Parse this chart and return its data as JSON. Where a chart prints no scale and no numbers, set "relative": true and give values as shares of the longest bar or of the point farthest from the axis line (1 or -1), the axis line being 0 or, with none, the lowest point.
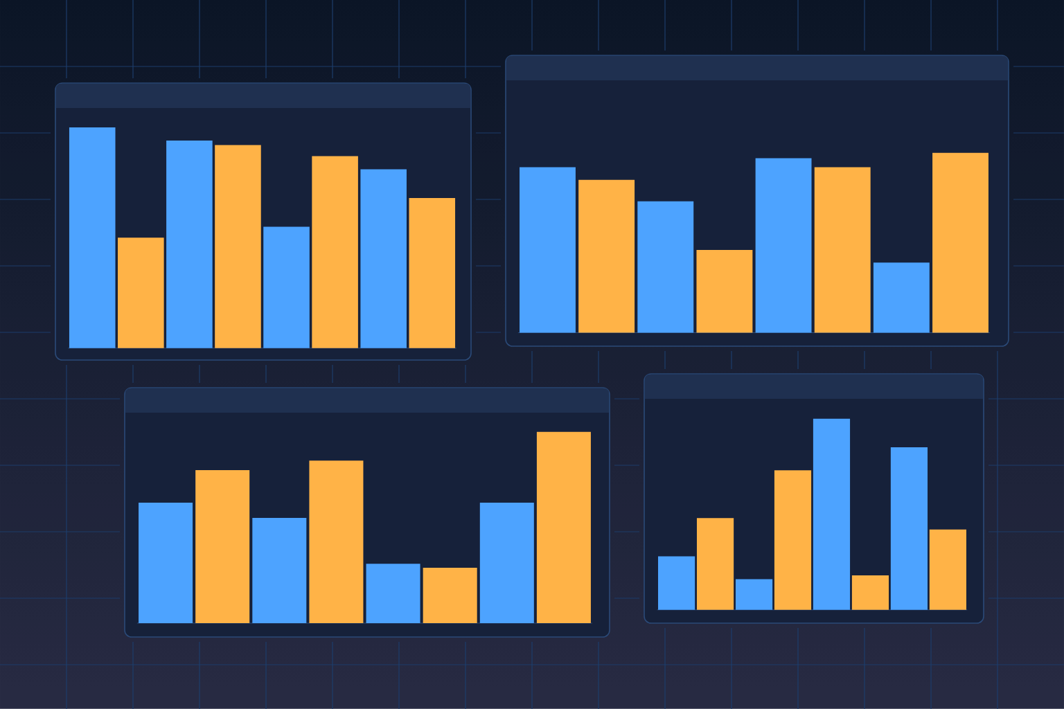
{
  "chart_data": [
    {
      "type": "bar",
      "relative": true,
      "categories": [
        null,
        null,
        null,
        null,
        null,
        null,
        null,
        null
      ],
      "values": [
        1,
        0.5,
        0.94,
        0.92,
        0.55,
        0.87,
        0.81,
        0.68
      ],
      "colors": [
        "#4da3ff",
        "#ffb347",
        "#4da3ff",
        "#ffb347",
        "#4da3ff",
        "#ffb347",
        "#4da3ff",
        "#ffb347"
      ]
    },
    {
      "type": "bar",
      "relative": true,
      "categories": [
        null,
        null,
        null,
        null,
        null,
        null,
        null,
        null
      ],
      "values": [
        0.92,
        0.85,
        0.73,
        0.46,
        0.97,
        0.92,
        0.39,
        1
      ],
      "colors": [
        "#4da3ff",
        "#ffb347",
        "#4da3ff",
        "#ffb347",
        "#4da3ff",
        "#ffb347",
        "#4da3ff",
        "#ffb347"
      ]
    },
    {
      "type": "bar",
      "relative": true,
      "categories": [
        null,
        null,
        null,
        null,
        null,
        null,
        null,
        null
      ],
      "values": [
        0.63,
        0.8,
        0.55,
        0.85,
        0.31,
        0.29,
        0.63,
        1
      ],
      "colors": [
        "#4da3ff",
        "#ffb347",
        "#4da3ff",
        "#ffb347",
        "#4da3ff",
        "#ffb347",
        "#4da3ff",
        "#ffb347"
      ]
    },
    {
      "type": "bar",
      "relative": true,
      "categories": [
        null,
        null,
        null,
        null,
        null,
        null,
        null,
        null
      ],
      "values": [
        0.28,
        0.48,
        0.16,
        0.73,
        1,
        0.18,
        0.85,
        0.42
      ],
      "colors": [
        "#4da3ff",
        "#ffb347",
        "#4da3ff",
        "#ffb347",
        "#4da3ff",
        "#ffb347",
        "#4da3ff",
        "#ffb347"
      ]
    }
  ]
}
